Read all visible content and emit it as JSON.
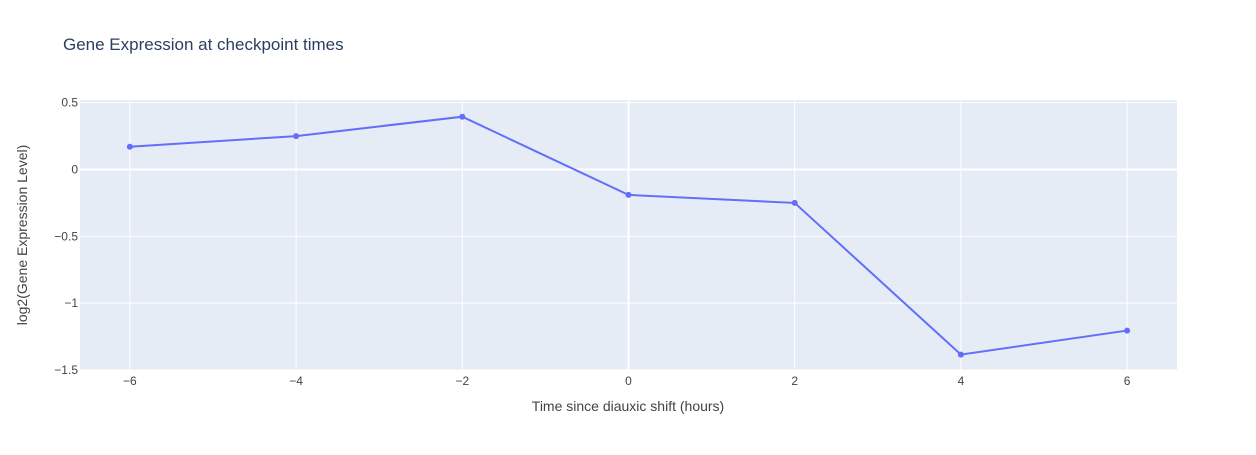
{
  "chart_data": {
    "type": "line",
    "title": "Gene Expression at checkpoint times",
    "xlabel": "Time since diauxic shift (hours)",
    "ylabel": "log2(Gene Expression Level)",
    "x": [
      -6,
      -4,
      -2,
      0,
      2,
      4,
      6
    ],
    "series": [
      {
        "values": [
          0.17,
          0.25,
          0.395,
          -0.19,
          -0.25,
          -1.385,
          -1.205
        ]
      }
    ],
    "xlim": [
      -6.6,
      6.6
    ],
    "ylim": [
      -1.5,
      0.52
    ],
    "xticks": [
      -6,
      -4,
      -2,
      0,
      2,
      4,
      6
    ],
    "xtick_labels": [
      "−6",
      "−4",
      "−2",
      "0",
      "2",
      "4",
      "6"
    ],
    "yticks": [
      0.5,
      0,
      -0.5,
      -1,
      -1.5
    ],
    "ytick_labels": [
      "0.5",
      "0",
      "−0.5",
      "−1",
      "−1.5"
    ],
    "grid": true,
    "colors": {
      "line": "#636efa",
      "plot_bg": "#e5ecf6",
      "text": "#444444",
      "title": "#2a3f5f",
      "grid": "#ffffff"
    }
  }
}
